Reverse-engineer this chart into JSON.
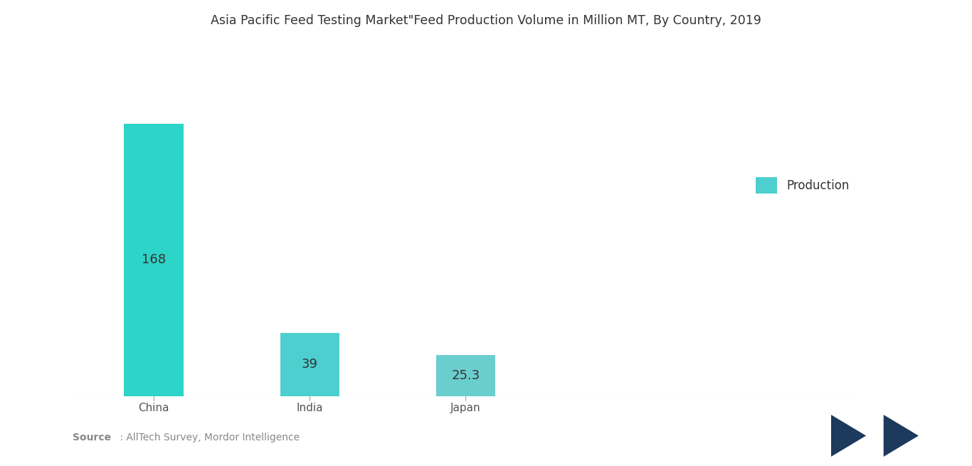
{
  "title": "Asia Pacific Feed Testing Market\"Feed Production Volume in Million MT, By Country, 2019",
  "categories": [
    "China",
    "India",
    "Japan"
  ],
  "values": [
    168,
    39,
    25.3
  ],
  "bar_color_china": "#2DD4C8",
  "bar_color_india": "#4DCFCF",
  "bar_color_japan": "#6BCECE",
  "label_values": [
    "168",
    "39",
    "25.3"
  ],
  "legend_label": "Production",
  "legend_color": "#4DCFCF",
  "source_bold": "Source",
  "source_rest": " : AllTech Survey, Mordor Intelligence",
  "background_color": "#ffffff",
  "title_fontsize": 12.5,
  "label_fontsize": 13,
  "tick_fontsize": 11,
  "bar_width": 0.38,
  "ylim": [
    0,
    210
  ],
  "figsize": [
    13.66,
    6.55
  ],
  "logo_color": "#1B3A5C"
}
